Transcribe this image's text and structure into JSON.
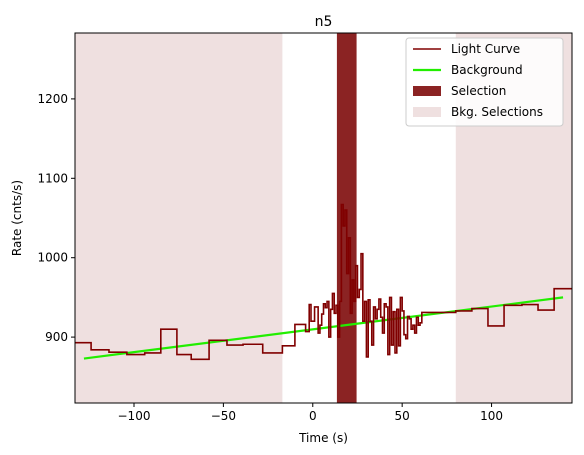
{
  "chart_data": {
    "type": "line",
    "title": "n5",
    "xlabel": "Time (s)",
    "ylabel": "Rate (cnts/s)",
    "xlim": [
      -133,
      145
    ],
    "ylim": [
      817,
      1283
    ],
    "xticks": [
      -100,
      -50,
      0,
      50,
      100
    ],
    "xtick_labels": [
      "−100",
      "−50",
      "0",
      "50",
      "100"
    ],
    "yticks": [
      900,
      1000,
      1100,
      1200
    ],
    "ytick_labels": [
      "900",
      "1000",
      "1100",
      "1200"
    ],
    "grid": false,
    "legend_position": "top-right",
    "legend": [
      {
        "label": "Light Curve",
        "kind": "line",
        "color": "#800000"
      },
      {
        "label": "Background",
        "kind": "line",
        "color": "#22ee00"
      },
      {
        "label": "Selection",
        "kind": "patch",
        "color": "#8b2323"
      },
      {
        "label": "Bkg. Selections",
        "kind": "patch",
        "color": "#efe0e0"
      }
    ],
    "colors": {
      "light_curve": "#800000",
      "background": "#22ee00",
      "selection": "#8b2323",
      "bkg_selection": "#efe0e0"
    },
    "bkg_selections": [
      [
        -133,
        -17
      ],
      [
        80,
        145
      ]
    ],
    "selection": [
      13.5,
      24.5
    ],
    "background_line": {
      "x": [
        -128,
        140
      ],
      "y": [
        873,
        950
      ]
    },
    "light_curve": {
      "edges": [
        -133,
        -124,
        -114,
        -104,
        -94,
        -85,
        -76,
        -68,
        -58,
        -48,
        -39,
        -28,
        -17,
        -10,
        -8,
        -4,
        -2,
        -1,
        1,
        3,
        4,
        5,
        6,
        7,
        8,
        9,
        10,
        11,
        12,
        13,
        14,
        15,
        16,
        17,
        18,
        19,
        20,
        21,
        22,
        23,
        24,
        25,
        26,
        27,
        28,
        29,
        30,
        31,
        32,
        33,
        34,
        35,
        36,
        37,
        38,
        39,
        40,
        41,
        42,
        43,
        44,
        45,
        46,
        47,
        48,
        49,
        50,
        51,
        52,
        53,
        54,
        55,
        56,
        57,
        58,
        59,
        60,
        61,
        70,
        80,
        89,
        98,
        107,
        117,
        126,
        135,
        145
      ],
      "values": [
        893,
        884,
        881,
        878,
        880,
        910,
        878,
        872,
        896,
        890,
        891,
        880,
        889,
        916,
        916,
        907,
        941,
        920,
        938,
        905,
        915,
        929,
        942,
        937,
        945,
        900,
        935,
        955,
        930,
        940,
        900,
        945,
        1067,
        1040,
        1060,
        980,
        1025,
        930,
        972,
        945,
        990,
        950,
        960,
        1005,
        920,
        945,
        875,
        947,
        920,
        890,
        938,
        923,
        935,
        948,
        925,
        905,
        942,
        938,
        878,
        950,
        890,
        932,
        880,
        935,
        889,
        950,
        933,
        903,
        898,
        926,
        923,
        910,
        915,
        905,
        925,
        915,
        918,
        931,
        931,
        933,
        936,
        914,
        940,
        941,
        934,
        961
      ]
    }
  }
}
